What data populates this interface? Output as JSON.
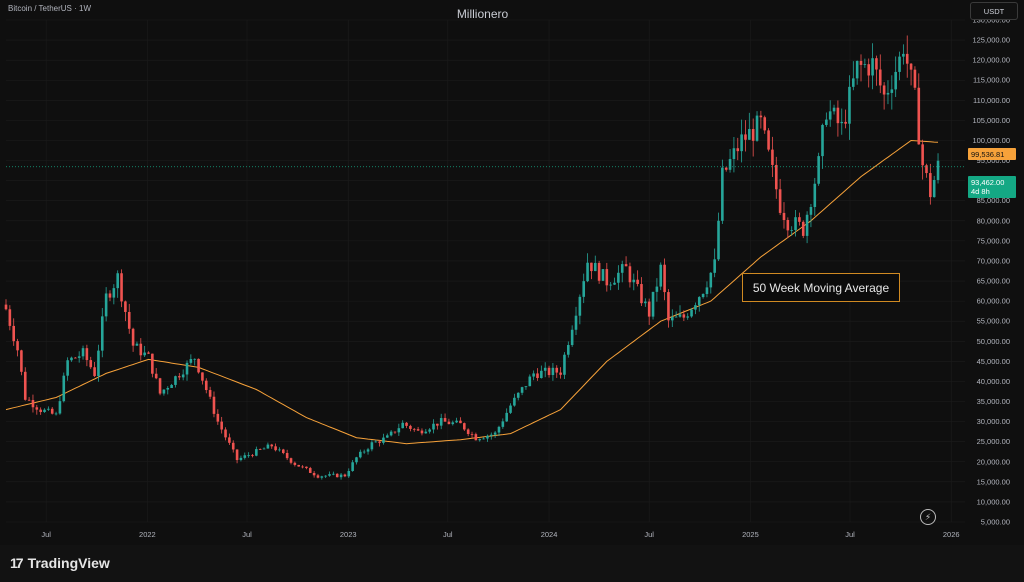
{
  "header": {
    "symbol": "Bitcoin / TetherUS · 1W",
    "watermark": "Millionero",
    "currency": "USDT"
  },
  "annotation": {
    "text": "50 Week Moving Average"
  },
  "price_tags": {
    "ma_value": "99,536.81",
    "last_price": "93,462.00",
    "countdown": "4d 8h"
  },
  "footer": {
    "brand": "TradingView"
  },
  "colors": {
    "up": "#26a69a",
    "down": "#ef5350",
    "ma": "#f7a23a",
    "bg": "#0f0f0f",
    "grid": "#1c1c1c"
  },
  "chart_data": {
    "type": "candlestick",
    "interval": "1W",
    "ylim": [
      5000,
      130000
    ],
    "yticks": [
      5000,
      10000,
      15000,
      20000,
      25000,
      30000,
      35000,
      40000,
      45000,
      50000,
      55000,
      60000,
      65000,
      70000,
      75000,
      80000,
      85000,
      90000,
      95000,
      100000,
      105000,
      110000,
      115000,
      120000,
      125000,
      130000
    ],
    "ytick_labels": [
      "5,000.00",
      "10,000.00",
      "15,000.00",
      "20,000.00",
      "25,000.00",
      "30,000.00",
      "35,000.00",
      "40,000.00",
      "45,000.00",
      "50,000.00",
      "55,000.00",
      "60,000.00",
      "65,000.00",
      "70,000.00",
      "75,000.00",
      "80,000.00",
      "85,000.00",
      "90,000.00",
      "95,000.00",
      "100,000.00",
      "105,000.00",
      "110,000.00",
      "115,000.00",
      "120,000.00",
      "125,000.00",
      "130,000.00"
    ],
    "xticks": [
      {
        "date": "2021-07-01",
        "label": "Jul"
      },
      {
        "date": "2022-01-01",
        "label": "2022"
      },
      {
        "date": "2022-07-01",
        "label": "Jul"
      },
      {
        "date": "2023-01-01",
        "label": "2023"
      },
      {
        "date": "2023-07-01",
        "label": "Jul"
      },
      {
        "date": "2024-01-01",
        "label": "2024"
      },
      {
        "date": "2024-07-01",
        "label": "Jul"
      },
      {
        "date": "2025-01-01",
        "label": "2025"
      },
      {
        "date": "2025-07-01",
        "label": "Jul"
      },
      {
        "date": "2026-01-01",
        "label": "2026"
      }
    ],
    "x_start": "2021-04-19",
    "x_end": "2026-01-26",
    "close_keypoints": [
      [
        "2021-04-19",
        58000
      ],
      [
        "2021-05-10",
        48000
      ],
      [
        "2021-05-24",
        36000
      ],
      [
        "2021-06-21",
        33000
      ],
      [
        "2021-07-19",
        31500
      ],
      [
        "2021-08-09",
        45000
      ],
      [
        "2021-09-06",
        47000
      ],
      [
        "2021-09-27",
        42000
      ],
      [
        "2021-10-18",
        61000
      ],
      [
        "2021-11-08",
        66000
      ],
      [
        "2021-12-06",
        49000
      ],
      [
        "2022-01-03",
        46000
      ],
      [
        "2022-01-24",
        37000
      ],
      [
        "2022-03-28",
        46000
      ],
      [
        "2022-05-09",
        30000
      ],
      [
        "2022-06-13",
        20500
      ],
      [
        "2022-07-18",
        22500
      ],
      [
        "2022-08-15",
        24000
      ],
      [
        "2022-09-26",
        19500
      ],
      [
        "2022-11-07",
        16500
      ],
      [
        "2022-12-26",
        16600
      ],
      [
        "2023-01-16",
        21000
      ],
      [
        "2023-02-13",
        24500
      ],
      [
        "2023-03-13",
        26000
      ],
      [
        "2023-04-10",
        29500
      ],
      [
        "2023-05-08",
        27500
      ],
      [
        "2023-06-19",
        30000
      ],
      [
        "2023-07-24",
        29300
      ],
      [
        "2023-08-21",
        26000
      ],
      [
        "2023-09-25",
        27000
      ],
      [
        "2023-10-23",
        34000
      ],
      [
        "2023-12-04",
        42000
      ],
      [
        "2024-01-22",
        42500
      ],
      [
        "2024-02-26",
        62000
      ],
      [
        "2024-03-11",
        70000
      ],
      [
        "2024-04-15",
        65000
      ],
      [
        "2024-05-20",
        68000
      ],
      [
        "2024-07-01",
        57000
      ],
      [
        "2024-07-22",
        68000
      ],
      [
        "2024-08-05",
        55000
      ],
      [
        "2024-09-02",
        56000
      ],
      [
        "2024-10-07",
        63000
      ],
      [
        "2024-10-28",
        69000
      ],
      [
        "2024-11-11",
        91000
      ],
      [
        "2024-12-16",
        100000
      ],
      [
        "2025-01-20",
        104000
      ],
      [
        "2025-02-24",
        84000
      ],
      [
        "2025-03-10",
        80000
      ],
      [
        "2025-04-07",
        78000
      ],
      [
        "2025-05-05",
        94000
      ],
      [
        "2025-05-19",
        108000
      ],
      [
        "2025-06-16",
        103000
      ],
      [
        "2025-07-14",
        118000
      ],
      [
        "2025-08-11",
        119000
      ],
      [
        "2025-09-01",
        111000
      ],
      [
        "2025-09-29",
        120000
      ],
      [
        "2025-10-06",
        124000
      ],
      [
        "2025-10-27",
        110000
      ],
      [
        "2025-11-10",
        94000
      ],
      [
        "2025-11-24",
        87000
      ],
      [
        "2025-12-08",
        93462
      ]
    ],
    "moving_average": {
      "name": "50 Week Moving Average",
      "keypoints": [
        [
          "2021-04-19",
          33000
        ],
        [
          "2021-07-19",
          36000
        ],
        [
          "2021-10-18",
          42000
        ],
        [
          "2022-01-03",
          45500
        ],
        [
          "2022-04-04",
          43500
        ],
        [
          "2022-07-18",
          38000
        ],
        [
          "2022-10-17",
          31000
        ],
        [
          "2023-01-16",
          26000
        ],
        [
          "2023-04-17",
          24500
        ],
        [
          "2023-07-24",
          25500
        ],
        [
          "2023-10-23",
          27000
        ],
        [
          "2024-01-22",
          33000
        ],
        [
          "2024-04-15",
          45000
        ],
        [
          "2024-07-22",
          55000
        ],
        [
          "2024-10-21",
          60000
        ],
        [
          "2025-01-20",
          71000
        ],
        [
          "2025-04-21",
          80000
        ],
        [
          "2025-07-21",
          91000
        ],
        [
          "2025-10-20",
          100000
        ],
        [
          "2025-12-08",
          99536.81
        ]
      ]
    },
    "last_price": 93462.0,
    "ma_last": 99536.81
  }
}
